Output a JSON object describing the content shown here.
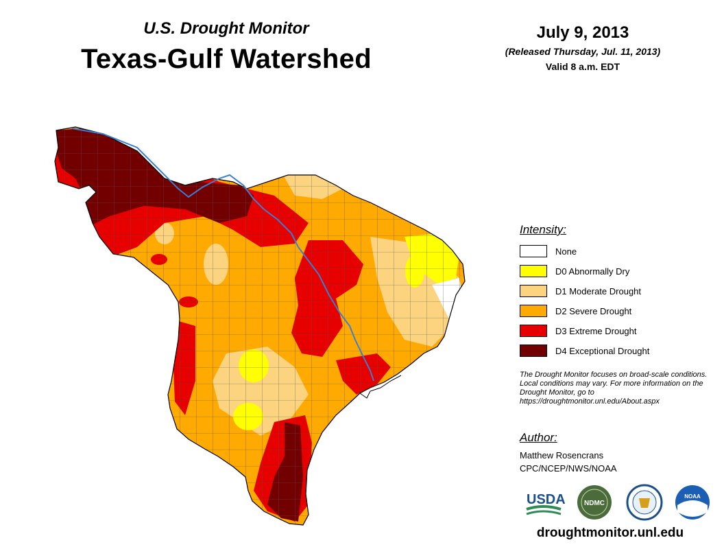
{
  "header": {
    "subtitle": "U.S. Drought Monitor",
    "title": "Texas-Gulf Watershed",
    "date": "July 9, 2013",
    "released": "(Released Thursday, Jul. 11, 2013)",
    "valid": "Valid 8 a.m. EDT"
  },
  "legend": {
    "heading": "Intensity:",
    "items": [
      {
        "label": "None",
        "color": "#ffffff"
      },
      {
        "label": "D0 Abnormally Dry",
        "color": "#ffff00"
      },
      {
        "label": "D1 Moderate Drought",
        "color": "#fcd37f"
      },
      {
        "label": "D2 Severe Drought",
        "color": "#ffaa00"
      },
      {
        "label": "D3 Extreme Drought",
        "color": "#e60000"
      },
      {
        "label": "D4 Exceptional Drought",
        "color": "#730000"
      }
    ]
  },
  "note": "The Drought Monitor focuses on broad-scale conditions. Local conditions may vary. For more information on the Drought Monitor, go to https://droughtmonitor.unl.edu/About.aspx",
  "author": {
    "heading": "Author:",
    "name": "Matthew Rosencrans",
    "org": "CPC/NCEP/NWS/NOAA"
  },
  "logos": [
    {
      "name": "usda-logo",
      "text": "USDA"
    },
    {
      "name": "ndmc-logo",
      "text": "NDMC"
    },
    {
      "name": "doc-seal",
      "text": ""
    },
    {
      "name": "noaa-logo",
      "text": "NOAA"
    }
  ],
  "footer": {
    "url": "droughtmonitor.unl.edu"
  },
  "colors": {
    "river": "#3a7fd5",
    "county_line": "#555555",
    "outline": "#000000"
  }
}
